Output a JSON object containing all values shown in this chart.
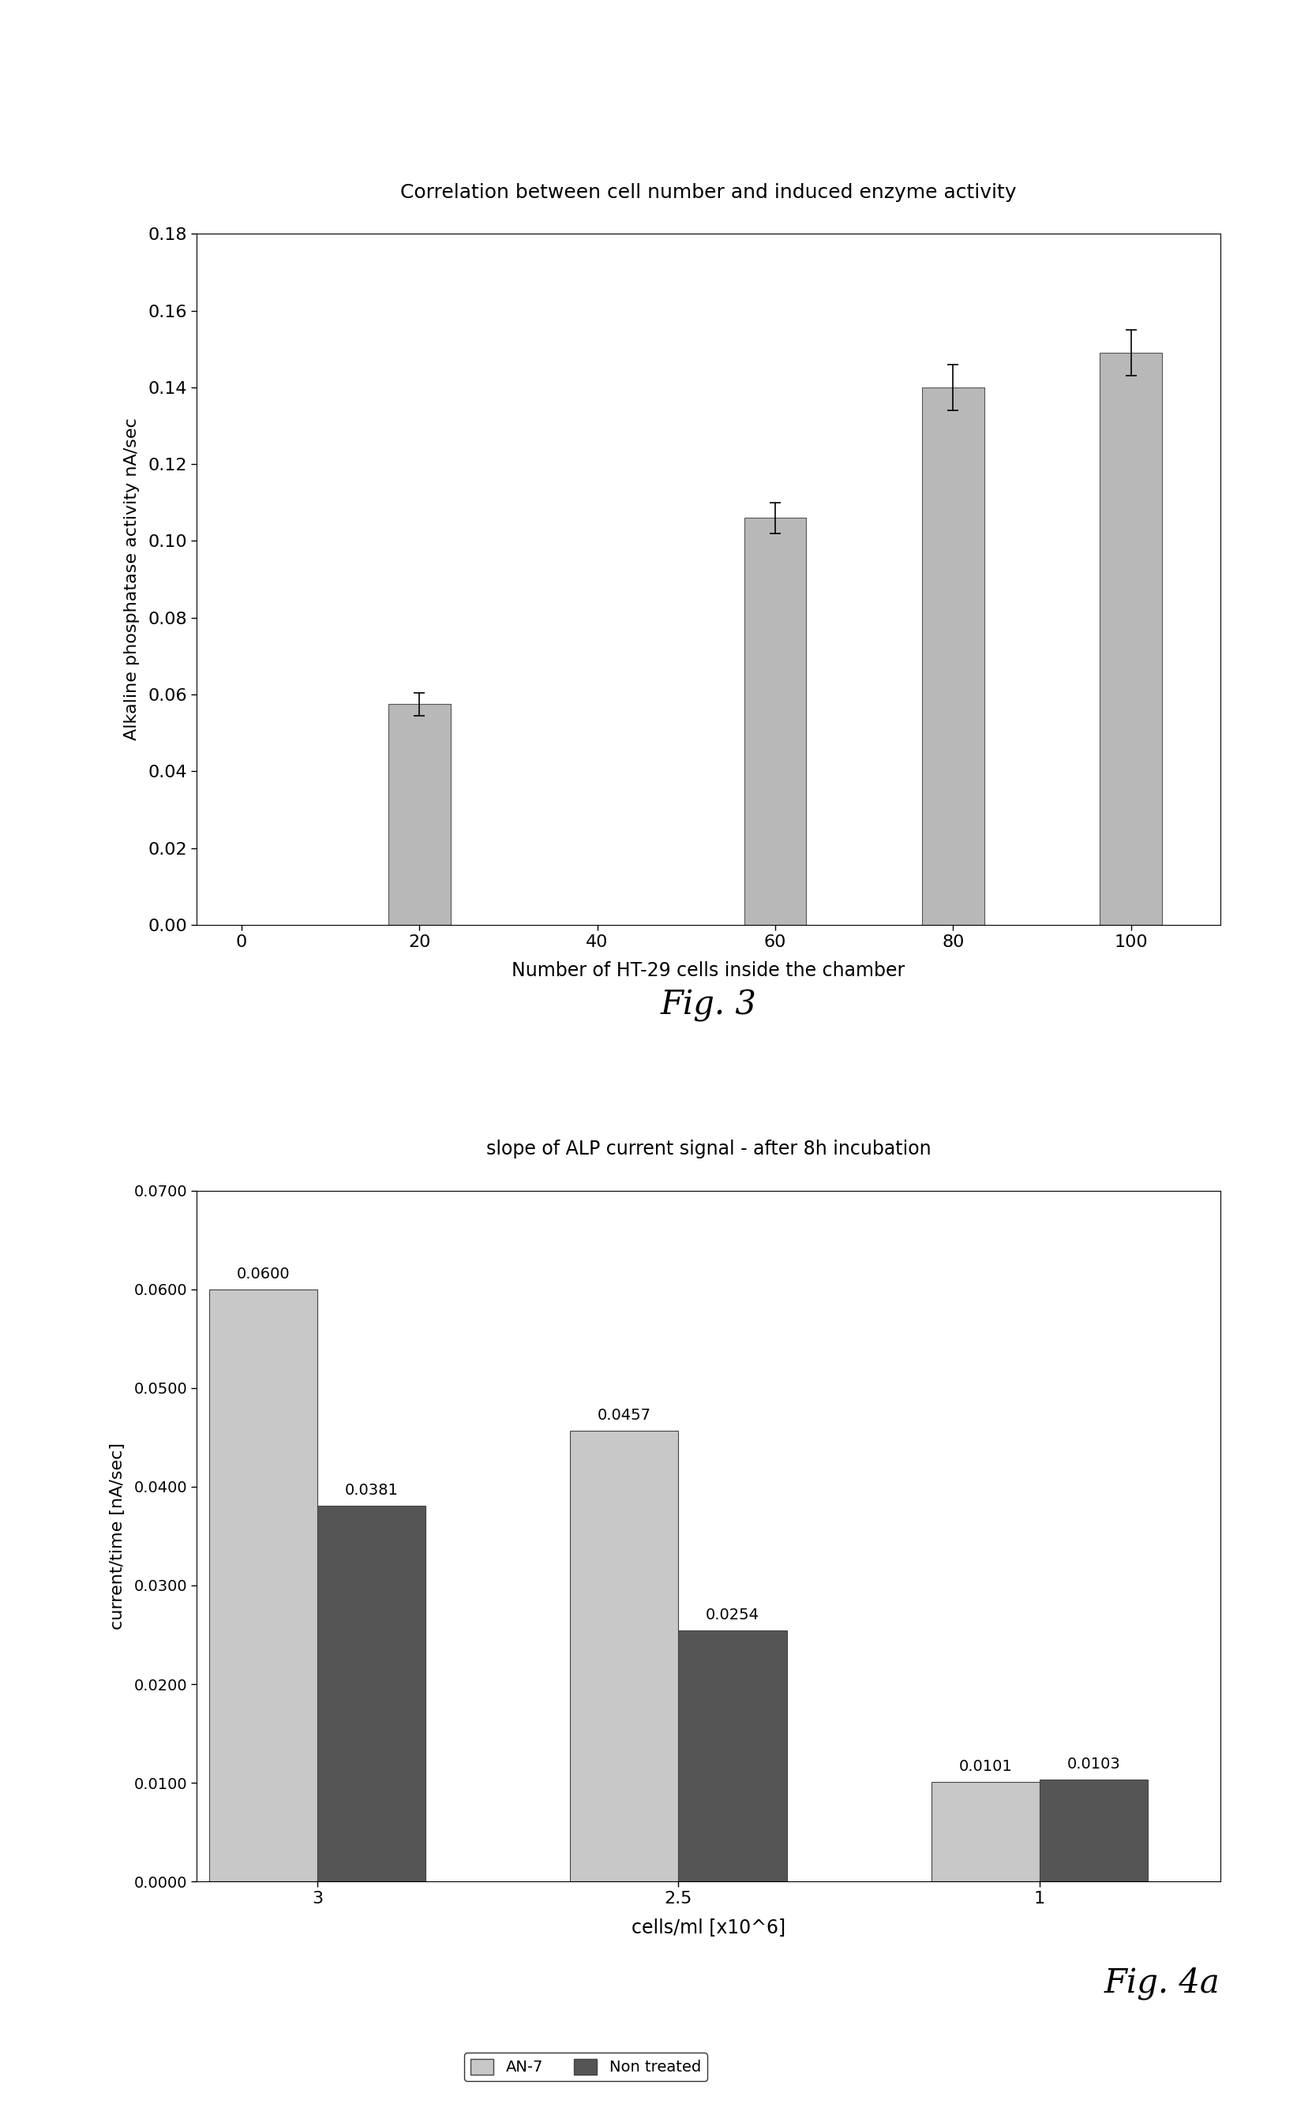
{
  "fig3": {
    "title": "Correlation between cell number and induced enzyme activity",
    "xlabel": "Number of HT-29 cells inside the chamber",
    "ylabel": "Alkaline phosphatase activity nA/sec",
    "xtick_categories": [
      0,
      20,
      40,
      60,
      80,
      100
    ],
    "bar_positions": [
      20,
      60,
      80,
      100
    ],
    "bar_values": [
      0.0575,
      0.106,
      0.14,
      0.149
    ],
    "bar_errors": [
      0.003,
      0.004,
      0.006,
      0.006
    ],
    "bar_color": "#b8b8b8",
    "bar_edge_color": "#555555",
    "ylim": [
      0,
      0.18
    ],
    "yticks": [
      0,
      0.02,
      0.04,
      0.06,
      0.08,
      0.1,
      0.12,
      0.14,
      0.16,
      0.18
    ],
    "fig_label": "Fig. 3"
  },
  "fig4a": {
    "title": "slope of ALP current signal - after 8h incubation",
    "xlabel": "cells/ml [x10^6]",
    "ylabel": "current/time [nA/sec]",
    "group_labels": [
      "3",
      "2.5",
      "1"
    ],
    "an7_values": [
      0.06,
      0.0457,
      0.0101
    ],
    "nontreated_values": [
      0.0381,
      0.0254,
      0.0103
    ],
    "an7_labels": [
      "0.0600",
      "0.0457",
      "0.0101"
    ],
    "nontreated_labels": [
      "0.0381",
      "0.0254",
      "0.0103"
    ],
    "an7_color": "#c8c8c8",
    "nontreated_color": "#555555",
    "bar_edge_color": "#444444",
    "ylim": [
      0,
      0.07
    ],
    "yticks": [
      0.0,
      0.01,
      0.02,
      0.03,
      0.04,
      0.05,
      0.06,
      0.07
    ],
    "legend_labels": [
      "AN-7",
      "Non treated"
    ],
    "fig_label": "Fig. 4a"
  },
  "background_color": "#ffffff"
}
